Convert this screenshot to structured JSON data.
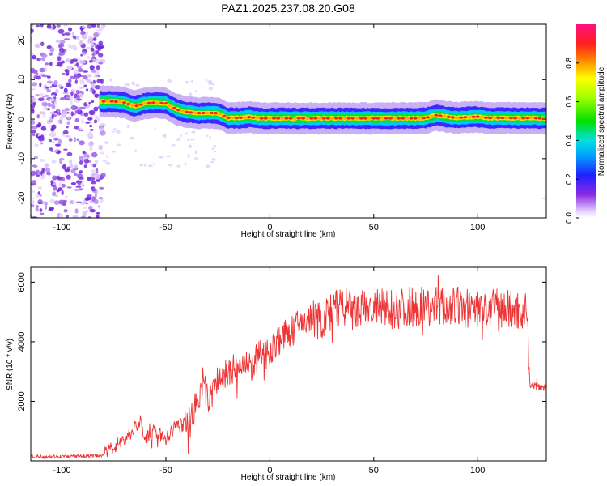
{
  "title": "PAZ1.2025.237.08.20.G08",
  "chart_data": [
    {
      "type": "heatmap",
      "xlabel": "Height of straight line (km)",
      "ylabel": "Frequency (Hz)",
      "xlim": [
        -115,
        133
      ],
      "ylim": [
        -25,
        24
      ],
      "xticks": [
        -100,
        -50,
        0,
        50,
        100
      ],
      "yticks": [
        -20,
        -10,
        0,
        10,
        20
      ],
      "colorbar": {
        "label": "Normalized spectral amplitude",
        "range": [
          0,
          1
        ],
        "ticks": [
          "0.0",
          "0.2",
          "0.4",
          "0.6",
          "0.8"
        ]
      },
      "ridge": {
        "x": [
          -80,
          -75,
          -70,
          -65,
          -60,
          -55,
          -50,
          -45,
          -40,
          -35,
          -30,
          -25,
          -20,
          -15,
          -10,
          -5,
          0,
          10,
          20,
          30,
          40,
          50,
          60,
          65,
          70,
          75,
          80,
          85,
          90,
          95,
          100,
          105,
          110,
          115,
          120,
          125,
          130,
          133
        ],
        "frequency": [
          4.5,
          4.5,
          4.2,
          3.2,
          4.0,
          4.2,
          4.0,
          2.5,
          1.8,
          1.5,
          1.6,
          1.5,
          0.3,
          0.3,
          0.5,
          0.2,
          0.2,
          0.2,
          0.2,
          0.2,
          0.2,
          0.2,
          0.2,
          0.2,
          0.2,
          0.3,
          1.0,
          0.6,
          0.3,
          0.5,
          0.6,
          0.3,
          0.3,
          0.3,
          0.2,
          0.3,
          0.2,
          0.2
        ]
      }
    },
    {
      "type": "line",
      "xlabel": "Height of straight line (km)",
      "ylabel": "SNR (10 * v/v)",
      "xlim": [
        -115,
        133
      ],
      "ylim": [
        0,
        6500
      ],
      "xticks": [
        -100,
        -50,
        0,
        50,
        100
      ],
      "yticks": [
        2000,
        4000,
        6000
      ],
      "color": "#ee3333",
      "series": [
        {
          "x": [
            -115,
            -105,
            -95,
            -85,
            -80,
            -75,
            -70,
            -65,
            -62,
            -60,
            -55,
            -50,
            -45,
            -40,
            -35,
            -32,
            -30,
            -25,
            -20,
            -15,
            -10,
            -5,
            0,
            5,
            10,
            15,
            20,
            25,
            30,
            35,
            40,
            50,
            60,
            70,
            80,
            90,
            100,
            110,
            115,
            120,
            124,
            125,
            128,
            133
          ],
          "y": [
            150,
            150,
            150,
            170,
            200,
            500,
            700,
            1100,
            1300,
            700,
            1000,
            700,
            1200,
            1200,
            1900,
            2700,
            2000,
            2700,
            2900,
            3200,
            3100,
            3500,
            3700,
            4100,
            4300,
            4600,
            4800,
            4700,
            5000,
            5200,
            5000,
            5100,
            5100,
            5200,
            5200,
            5150,
            5100,
            5050,
            5100,
            5050,
            5000,
            2600,
            2500,
            2500
          ]
        }
      ]
    }
  ]
}
